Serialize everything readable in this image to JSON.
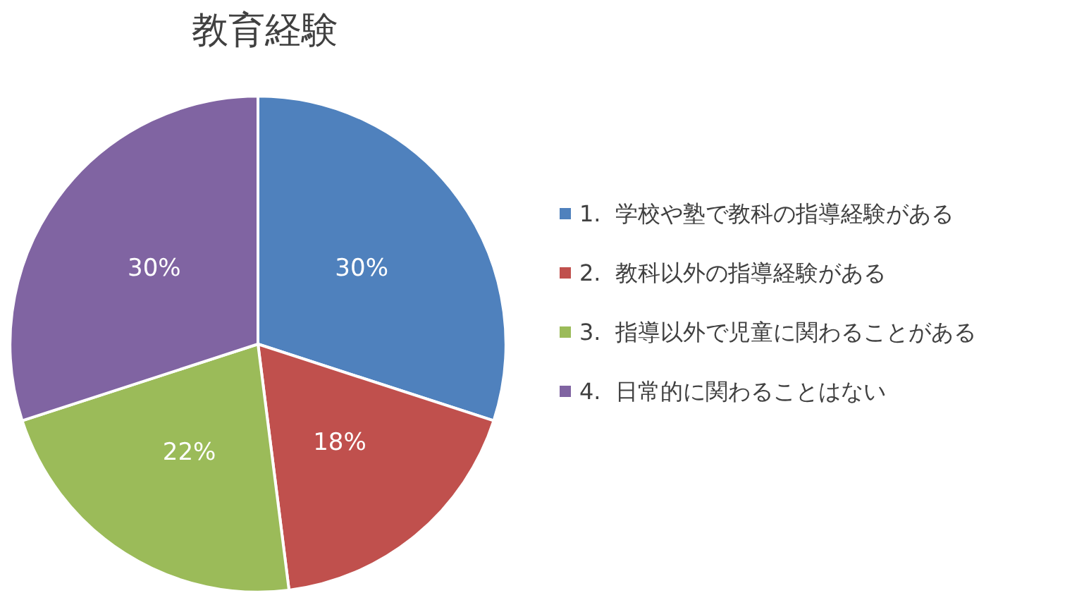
{
  "chart_data": {
    "type": "pie",
    "title": "教育経験",
    "categories": [
      "1.  学校や塾で教科の指導経験がある",
      "2.  教科以外の指導経験がある",
      "3.  指導以外で児童に関わることがある",
      "4.  日常的に関わることはない"
    ],
    "values": [
      30,
      18,
      22,
      30
    ],
    "colors": [
      "#4f81bd",
      "#c0504d",
      "#9bbb59",
      "#8064a2"
    ],
    "value_labels": [
      "30%",
      "18%",
      "22%",
      "30%"
    ],
    "legend": "right"
  }
}
